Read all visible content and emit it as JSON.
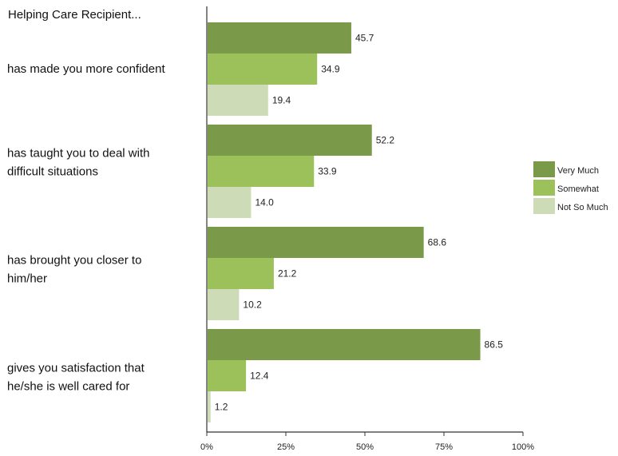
{
  "chart_data": {
    "type": "bar",
    "orientation": "horizontal",
    "title": "Helping Care Recipient...",
    "categories": [
      "has made you more confident",
      "has taught you to deal with difficult situations",
      "has brought you closer to him/her",
      "gives you satisfaction that he/she is well cared for"
    ],
    "category_lines": [
      [
        "has made you more confident"
      ],
      [
        "has taught you to deal with",
        "difficult situations"
      ],
      [
        "has brought you closer to",
        "him/her"
      ],
      [
        "gives you satisfaction that",
        "he/she is well cared for"
      ]
    ],
    "series": [
      {
        "name": "Very Much",
        "color": "#7a9a4a",
        "values": [
          45.7,
          52.2,
          68.6,
          86.5
        ]
      },
      {
        "name": "Somewhat",
        "color": "#9dc15a",
        "values": [
          34.9,
          33.9,
          21.2,
          12.4
        ]
      },
      {
        "name": "Not So Much",
        "color": "#cddcb6",
        "values": [
          19.4,
          14.0,
          10.2,
          1.2
        ]
      }
    ],
    "value_labels": [
      [
        "45.7",
        "52.2",
        "68.6",
        "86.5"
      ],
      [
        "34.9",
        "33.9",
        "21.2",
        "12.4"
      ],
      [
        "19.4",
        "14.0",
        "10.2",
        "1.2"
      ]
    ],
    "xlim": [
      0,
      100
    ],
    "xticks": [
      0,
      25,
      50,
      75,
      100
    ],
    "xtick_labels": [
      "0%",
      "25%",
      "50%",
      "75%",
      "100%"
    ],
    "legend_position": "right",
    "grid": false
  }
}
